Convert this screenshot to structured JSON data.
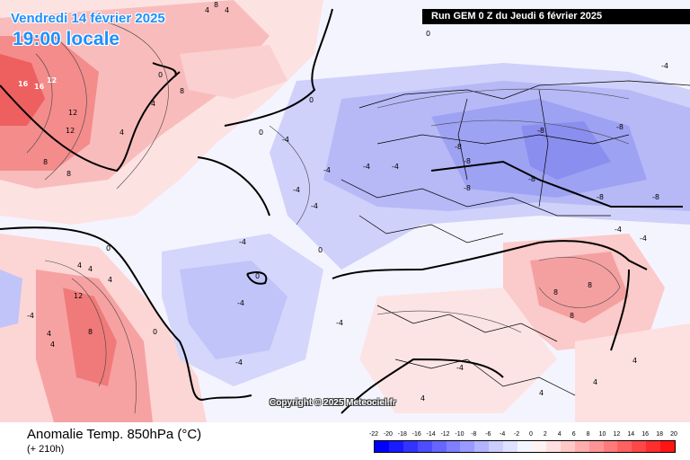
{
  "map": {
    "run_label": "Run GEM 0 Z du Jeudi 6 février 2025",
    "valid_date": "Vendredi 14 février 2025",
    "valid_time": "19:00 locale",
    "copyright": "Copyright © 2025 Meteociel.fr",
    "product_title": "Anomalie Temp. 850hPa (°C)",
    "lead_time": "(+ 210h)",
    "contour_labels": [
      "16",
      "16",
      "12",
      "12",
      "12",
      "8",
      "8",
      "8",
      "8",
      "4",
      "4",
      "4",
      "4",
      "4",
      "4",
      "0",
      "0",
      "0",
      "0",
      "0",
      "0",
      "0",
      "-4",
      "-4",
      "-4",
      "-4",
      "-4",
      "-4",
      "-4",
      "-4",
      "-4",
      "-4",
      "-4",
      "-8",
      "-8",
      "-8",
      "-8",
      "-8",
      "-8",
      "-8",
      "-8",
      "-4",
      "-4",
      "8",
      "8",
      "8",
      "4",
      "4",
      "4",
      "4",
      "-4",
      "12",
      "8",
      "4",
      "4",
      "4",
      "0",
      "-4"
    ]
  },
  "legend": {
    "ticks": [
      "-22",
      "-20",
      "-18",
      "-16",
      "-14",
      "-12",
      "-10",
      "-8",
      "-6",
      "-4",
      "-2",
      "0",
      "2",
      "4",
      "6",
      "8",
      "10",
      "12",
      "14",
      "16",
      "18",
      "20"
    ],
    "colors": [
      "#0000ff",
      "#1a1aff",
      "#3333ff",
      "#4d4dff",
      "#6666ff",
      "#7f7fff",
      "#9999ff",
      "#b3b3ff",
      "#ccccff",
      "#e0e0ff",
      "#f5f5ff",
      "#fff2f2",
      "#ffe0e0",
      "#ffc8c8",
      "#ffadad",
      "#ff9494",
      "#ff7a7a",
      "#ff6161",
      "#ff4747",
      "#ff2e2e",
      "#ff1414"
    ]
  }
}
